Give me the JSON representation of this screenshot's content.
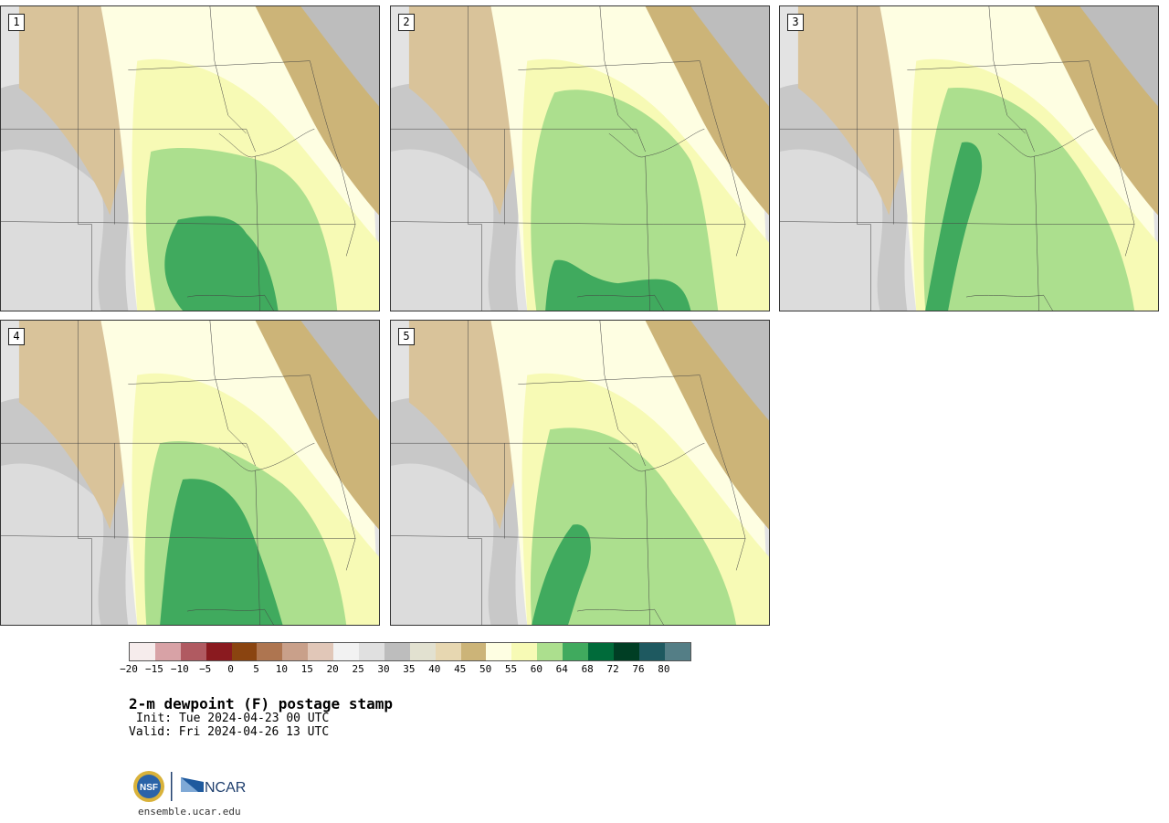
{
  "panels": [
    {
      "label": "1"
    },
    {
      "label": "2"
    },
    {
      "label": "3"
    },
    {
      "label": "4"
    },
    {
      "label": "5"
    }
  ],
  "colorbar": {
    "colors": [
      "#f6ecec",
      "#d8a2a6",
      "#b05a61",
      "#8a1a1f",
      "#8a4410",
      "#ae7550",
      "#c9a08a",
      "#e1c7b8",
      "#f2f2f2",
      "#e0e0e0",
      "#bdbdbd",
      "#e2e1d0",
      "#e7d7b1",
      "#ccb478",
      "#fefee2",
      "#f7fab5",
      "#acdf8e",
      "#40aa5e",
      "#006b3a",
      "#003e24",
      "#1e5960",
      "#547e86"
    ],
    "ticks": [
      "−20",
      "−15",
      "−10",
      "−5",
      "0",
      "5",
      "10",
      "15",
      "20",
      "25",
      "30",
      "35",
      "40",
      "45",
      "50",
      "55",
      "60",
      "64",
      "68",
      "72",
      "76",
      "80"
    ]
  },
  "title": "2-m dewpoint (F) postage stamp",
  "init": "Init: Tue 2024-04-23 00 UTC",
  "valid": "Valid: Fri 2024-04-26 13 UTC",
  "logo": {
    "nsf": "NSF",
    "ncar": "NCAR"
  },
  "site": "ensemble.ucar.edu"
}
